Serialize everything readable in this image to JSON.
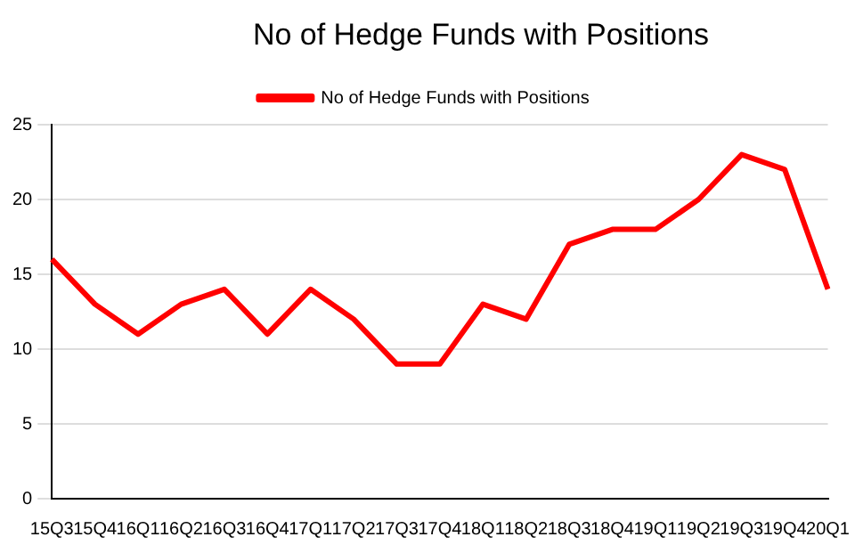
{
  "chart_data": {
    "type": "line",
    "title": "No of Hedge Funds with Positions",
    "categories": [
      "15Q3",
      "15Q4",
      "16Q1",
      "16Q2",
      "16Q3",
      "16Q4",
      "17Q1",
      "17Q2",
      "17Q3",
      "17Q4",
      "18Q1",
      "18Q2",
      "18Q3",
      "18Q4",
      "19Q1",
      "19Q2",
      "19Q3",
      "19Q4",
      "20Q1"
    ],
    "series": [
      {
        "name": "No of Hedge Funds with Positions",
        "color": "#ff0000",
        "values": [
          16,
          13,
          11,
          13,
          14,
          11,
          14,
          12,
          9,
          9,
          13,
          12,
          17,
          18,
          18,
          20,
          23,
          22,
          14
        ]
      }
    ],
    "ylim": [
      0,
      25
    ],
    "yticks": [
      0,
      5,
      10,
      15,
      20,
      25
    ],
    "grid": "y",
    "legend": "top",
    "marker": "none",
    "line_style": "solid"
  }
}
